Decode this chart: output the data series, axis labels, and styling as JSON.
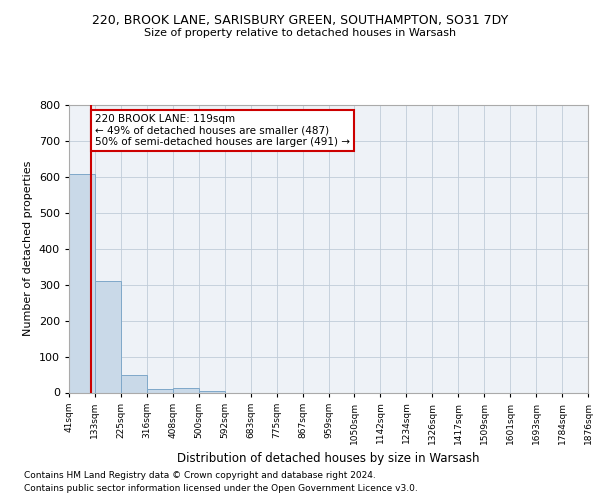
{
  "title1": "220, BROOK LANE, SARISBURY GREEN, SOUTHAMPTON, SO31 7DY",
  "title2": "Size of property relative to detached houses in Warsash",
  "xlabel": "Distribution of detached houses by size in Warsash",
  "ylabel": "Number of detached properties",
  "bin_labels": [
    "41sqm",
    "133sqm",
    "225sqm",
    "316sqm",
    "408sqm",
    "500sqm",
    "592sqm",
    "683sqm",
    "775sqm",
    "867sqm",
    "959sqm",
    "1050sqm",
    "1142sqm",
    "1234sqm",
    "1326sqm",
    "1417sqm",
    "1509sqm",
    "1601sqm",
    "1693sqm",
    "1784sqm",
    "1876sqm"
  ],
  "bar_heights": [
    607,
    310,
    50,
    10,
    12,
    3,
    0,
    0,
    0,
    0,
    0,
    0,
    0,
    0,
    0,
    0,
    0,
    0,
    0,
    0
  ],
  "bar_color": "#c9d9e8",
  "bar_edge_color": "#7fa8c9",
  "grid_color": "#c0ccd8",
  "bg_color": "#eef2f7",
  "annotation_text": "220 BROOK LANE: 119sqm\n← 49% of detached houses are smaller (487)\n50% of semi-detached houses are larger (491) →",
  "annotation_box_color": "#ffffff",
  "annotation_box_edge": "#cc0000",
  "vline_color": "#cc0000",
  "ylim": [
    0,
    800
  ],
  "yticks": [
    0,
    100,
    200,
    300,
    400,
    500,
    600,
    700,
    800
  ],
  "footer1": "Contains HM Land Registry data © Crown copyright and database right 2024.",
  "footer2": "Contains public sector information licensed under the Open Government Licence v3.0.",
  "bin_edges": [
    41,
    133,
    225,
    316,
    408,
    500,
    592,
    683,
    775,
    867,
    959,
    1050,
    1142,
    1234,
    1326,
    1417,
    1509,
    1601,
    1693,
    1784,
    1876
  ],
  "property_sqm": 119
}
